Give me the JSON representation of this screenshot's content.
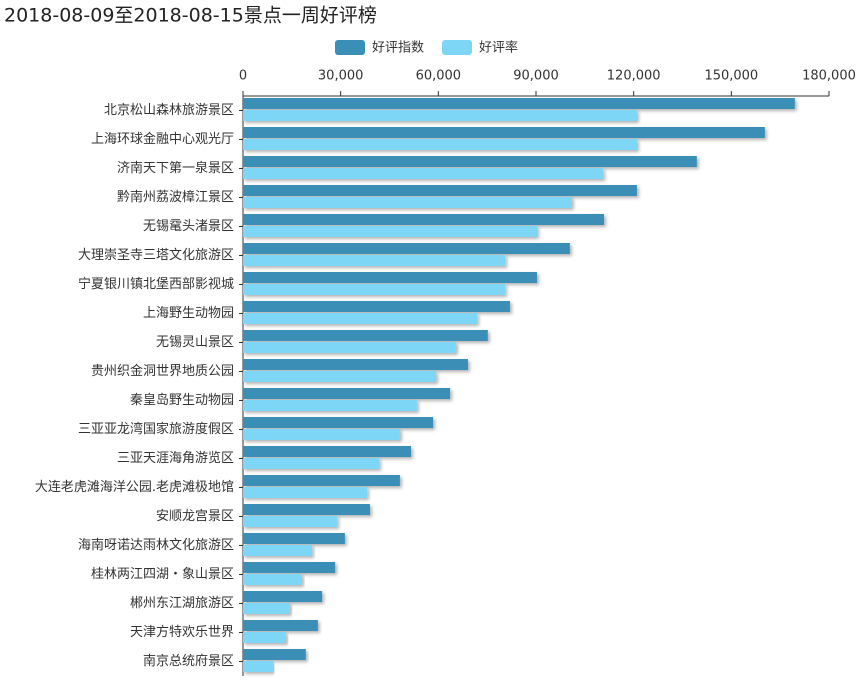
{
  "chart_data": {
    "type": "bar",
    "orientation": "horizontal",
    "title": "2018-08-09至2018-08-15景点一周好评榜",
    "categories": [
      "北京松山森林旅游景区",
      "上海环球金融中心观光厅",
      "济南天下第一泉景区",
      "黔南州荔波樟江景区",
      "无锡鼋头渚景区",
      "大理崇圣寺三塔文化旅游区",
      "宁夏银川镇北堡西部影视城",
      "上海野生动物园",
      "无锡灵山景区",
      "贵州织金洞世界地质公园",
      "秦皇岛野生动物园",
      "三亚亚龙湾国家旅游度假区",
      "三亚天涯海角游览区",
      "大连老虎滩海洋公园.老虎滩极地馆",
      "安顺龙宫景区",
      "海南呀诺达雨林文化旅游区",
      "桂林两江四湖・象山景区",
      "郴州东江湖旅游区",
      "天津方特欢乐世界",
      "南京总统府景区"
    ],
    "series": [
      {
        "name": "好评指数",
        "color": "#3a8fb7",
        "values": [
          169500,
          160300,
          139400,
          121000,
          110900,
          100400,
          90300,
          82000,
          75200,
          69100,
          63600,
          58400,
          51600,
          48200,
          39000,
          31300,
          28300,
          24300,
          23000,
          19300
        ]
      },
      {
        "name": "好评率",
        "color": "#7dd6f6",
        "values": [
          121000,
          121000,
          110600,
          101000,
          90300,
          80500,
          80500,
          71900,
          65400,
          59300,
          53400,
          48200,
          41800,
          38100,
          28900,
          21200,
          18100,
          14400,
          13200,
          9200
        ]
      }
    ],
    "xlim": [
      0,
      180000
    ],
    "xticks": [
      0,
      {
        "value": 30000,
        "label": "30,000"
      },
      {
        "value": 60000,
        "label": "60,000"
      },
      {
        "value": 90000,
        "label": "90,000"
      },
      {
        "value": 120000,
        "label": "120,000"
      },
      {
        "value": 150000,
        "label": "150,000"
      },
      {
        "value": 180000,
        "label": "180,000"
      }
    ],
    "legend": "top"
  }
}
